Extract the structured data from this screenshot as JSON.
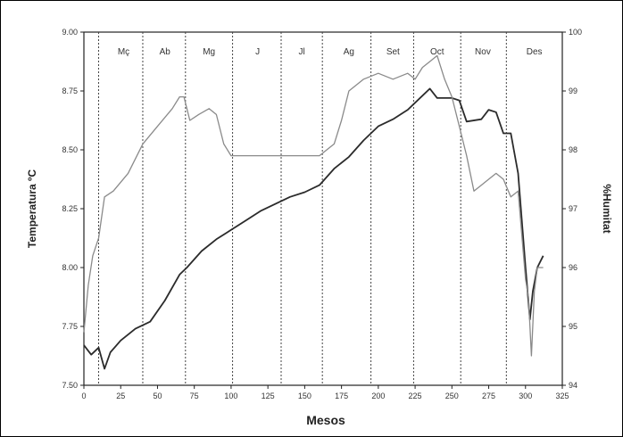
{
  "chart_data": {
    "type": "line",
    "title": "",
    "xlabel": "Mesos",
    "ylabel_left": "Temperatura ºC",
    "ylabel_right": "%Humitat",
    "xlim": [
      0,
      325
    ],
    "ylim_left": [
      7.5,
      9.0
    ],
    "ylim_right": [
      94,
      100
    ],
    "x_ticks": [
      "0",
      "25",
      "50",
      "75",
      "100",
      "125",
      "150",
      "175",
      "200",
      "225",
      "250",
      "275",
      "300",
      "325"
    ],
    "y_left_ticks": [
      "7.50",
      "7.75",
      "8.00",
      "8.25",
      "8.50",
      "8.75",
      "9.00"
    ],
    "y_right_ticks": [
      "94",
      "95",
      "96",
      "97",
      "98",
      "99",
      "100"
    ],
    "grid": false,
    "month_dividers": [
      10,
      40,
      69,
      101,
      134,
      162,
      195,
      224,
      256,
      287
    ],
    "month_labels": [
      {
        "label": "Mç",
        "x": 27
      },
      {
        "label": "Ab",
        "x": 55
      },
      {
        "label": "Mg",
        "x": 85
      },
      {
        "label": "J",
        "x": 118
      },
      {
        "label": "Jl",
        "x": 148
      },
      {
        "label": "Ag",
        "x": 180
      },
      {
        "label": "Set",
        "x": 210
      },
      {
        "label": "Oct",
        "x": 240
      },
      {
        "label": "Nov",
        "x": 271
      },
      {
        "label": "Des",
        "x": 306
      }
    ],
    "series": [
      {
        "axis": "left",
        "color": "#2b2b2b",
        "x": [
          0,
          5,
          10,
          14,
          18,
          25,
          35,
          45,
          55,
          65,
          70,
          80,
          90,
          100,
          110,
          120,
          130,
          140,
          150,
          160,
          170,
          180,
          190,
          200,
          210,
          220,
          230,
          235,
          240,
          250,
          255,
          260,
          270,
          275,
          280,
          285,
          290,
          295,
          300,
          303,
          305,
          308,
          312
        ],
        "y": [
          7.67,
          7.63,
          7.66,
          7.57,
          7.64,
          7.69,
          7.74,
          7.77,
          7.86,
          7.97,
          8.0,
          8.07,
          8.12,
          8.16,
          8.2,
          8.24,
          8.27,
          8.3,
          8.32,
          8.35,
          8.42,
          8.47,
          8.54,
          8.6,
          8.63,
          8.67,
          8.73,
          8.76,
          8.72,
          8.72,
          8.71,
          8.62,
          8.63,
          8.67,
          8.66,
          8.57,
          8.57,
          8.4,
          8.0,
          7.78,
          7.9,
          8.0,
          8.05
        ]
      },
      {
        "axis": "right",
        "color": "#8a8a8a",
        "x": [
          0,
          3,
          6,
          10,
          14,
          20,
          30,
          40,
          50,
          60,
          65,
          68,
          72,
          78,
          85,
          90,
          95,
          100,
          110,
          120,
          130,
          140,
          150,
          160,
          165,
          170,
          175,
          180,
          190,
          200,
          210,
          220,
          225,
          230,
          235,
          240,
          245,
          250,
          255,
          260,
          265,
          270,
          275,
          280,
          285,
          290,
          295,
          300,
          302,
          304,
          306,
          308,
          312
        ],
        "y": [
          94.9,
          95.7,
          96.2,
          96.5,
          97.2,
          97.3,
          97.6,
          98.1,
          98.4,
          98.7,
          98.9,
          98.9,
          98.5,
          98.6,
          98.7,
          98.6,
          98.1,
          97.9,
          97.9,
          97.9,
          97.9,
          97.9,
          97.9,
          97.9,
          98.0,
          98.1,
          98.5,
          99.0,
          99.2,
          99.3,
          99.2,
          99.3,
          99.2,
          99.4,
          99.5,
          99.6,
          99.2,
          98.9,
          98.4,
          97.9,
          97.3,
          97.4,
          97.5,
          97.6,
          97.5,
          97.2,
          97.3,
          95.8,
          95.5,
          94.5,
          95.6,
          96.0,
          96.0
        ]
      }
    ]
  }
}
